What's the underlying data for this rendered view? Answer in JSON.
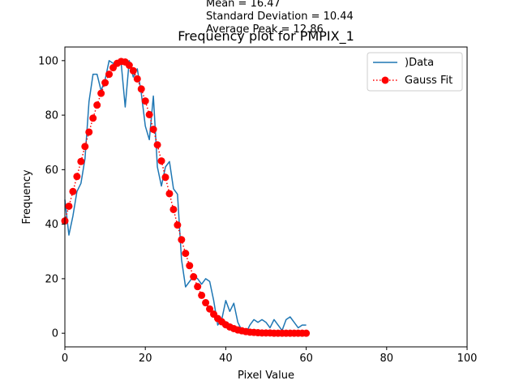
{
  "stats": {
    "mean": "Mean = 16.47",
    "std": "Standard Deviation = 10.44",
    "peak": "Average Peak = 12.86"
  },
  "chart_data": {
    "type": "line",
    "title": "Frequency plot for PMPIX_1",
    "xlabel": "Pixel Value",
    "ylabel": "Frequency",
    "xlim": [
      0,
      100
    ],
    "ylim": [
      -5,
      105
    ],
    "xticks": [
      0,
      20,
      40,
      60,
      80,
      100
    ],
    "yticks": [
      0,
      20,
      40,
      60,
      80,
      100
    ],
    "grid": false,
    "legend_position": "top-right",
    "series": [
      {
        "name": ")Data",
        "style": "line",
        "color": "#1f77b4",
        "x": [
          0,
          1,
          2,
          3,
          4,
          5,
          6,
          7,
          8,
          9,
          10,
          11,
          12,
          13,
          14,
          15,
          16,
          17,
          18,
          19,
          20,
          21,
          22,
          23,
          24,
          25,
          26,
          27,
          28,
          29,
          30,
          31,
          32,
          33,
          34,
          35,
          36,
          37,
          38,
          39,
          40,
          41,
          42,
          43,
          44,
          45,
          46,
          47,
          48,
          49,
          50,
          51,
          52,
          53,
          54,
          55,
          56,
          57,
          58,
          59,
          60
        ],
        "y": [
          49,
          36,
          43,
          52,
          55,
          64,
          85,
          95,
          95,
          89,
          93,
          100,
          99,
          98,
          99,
          83,
          100,
          94,
          97,
          88,
          76,
          71,
          87,
          61,
          54,
          61,
          63,
          53,
          51,
          27,
          17,
          19,
          21,
          20,
          18,
          20,
          19,
          12,
          3,
          5,
          12,
          8,
          11,
          4,
          1,
          0,
          3,
          5,
          4,
          5,
          4,
          2,
          5,
          3,
          1,
          5,
          6,
          4,
          2,
          3,
          3
        ]
      },
      {
        "name": "Gauss Fit",
        "style": "dotted-markers",
        "color": "#ff0000",
        "x": [
          0,
          1,
          2,
          3,
          4,
          5,
          6,
          7,
          8,
          9,
          10,
          11,
          12,
          13,
          14,
          15,
          16,
          17,
          18,
          19,
          20,
          21,
          22,
          23,
          24,
          25,
          26,
          27,
          28,
          29,
          30,
          31,
          32,
          33,
          34,
          35,
          36,
          37,
          38,
          39,
          40,
          41,
          42,
          43,
          44,
          45,
          46,
          47,
          48,
          49,
          50,
          51,
          52,
          53,
          54,
          55,
          56,
          57,
          58,
          59,
          60
        ],
        "y": [
          41.2,
          46.6,
          52.0,
          57.5,
          63.0,
          68.5,
          73.8,
          78.9,
          83.7,
          88.0,
          91.9,
          95.0,
          97.4,
          99.0,
          99.7,
          99.5,
          98.3,
          96.3,
          93.3,
          89.6,
          85.2,
          80.2,
          74.8,
          69.1,
          63.2,
          57.2,
          51.2,
          45.4,
          39.7,
          34.3,
          29.3,
          24.8,
          20.7,
          17.1,
          13.9,
          11.2,
          8.9,
          7.0,
          5.4,
          4.2,
          3.1,
          2.3,
          1.7,
          1.2,
          0.9,
          0.6,
          0.4,
          0.3,
          0.2,
          0.1,
          0.1,
          0.1,
          0.0,
          0.0,
          0.0,
          0.0,
          0.0,
          0.0,
          0.0,
          0.0,
          0.0
        ]
      }
    ]
  }
}
